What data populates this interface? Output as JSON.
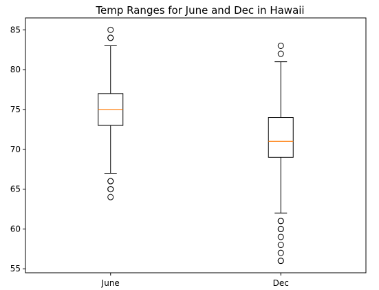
{
  "chart_data": {
    "type": "box",
    "title": "Temp Ranges for June and Dec in Hawaii",
    "xlabel": "",
    "ylabel": "",
    "ylim": [
      54.5,
      86.5
    ],
    "yticks": [
      55,
      60,
      65,
      70,
      75,
      80,
      85
    ],
    "categories": [
      "June",
      "Dec"
    ],
    "series": [
      {
        "category": "June",
        "whisker_low": 67,
        "q1": 73,
        "median": 75,
        "q3": 77,
        "whisker_high": 83,
        "outliers": [
          85,
          84,
          84,
          66,
          66,
          65,
          65,
          64
        ]
      },
      {
        "category": "Dec",
        "whisker_low": 62,
        "q1": 69,
        "median": 71,
        "q3": 74,
        "whisker_high": 81,
        "outliers": [
          83,
          82,
          61,
          61,
          60,
          60,
          59,
          58,
          57,
          56,
          56
        ]
      }
    ],
    "grid": false,
    "colors": {
      "box": "#000000",
      "median": "#ff7f0e",
      "outlier": "#000000"
    }
  }
}
